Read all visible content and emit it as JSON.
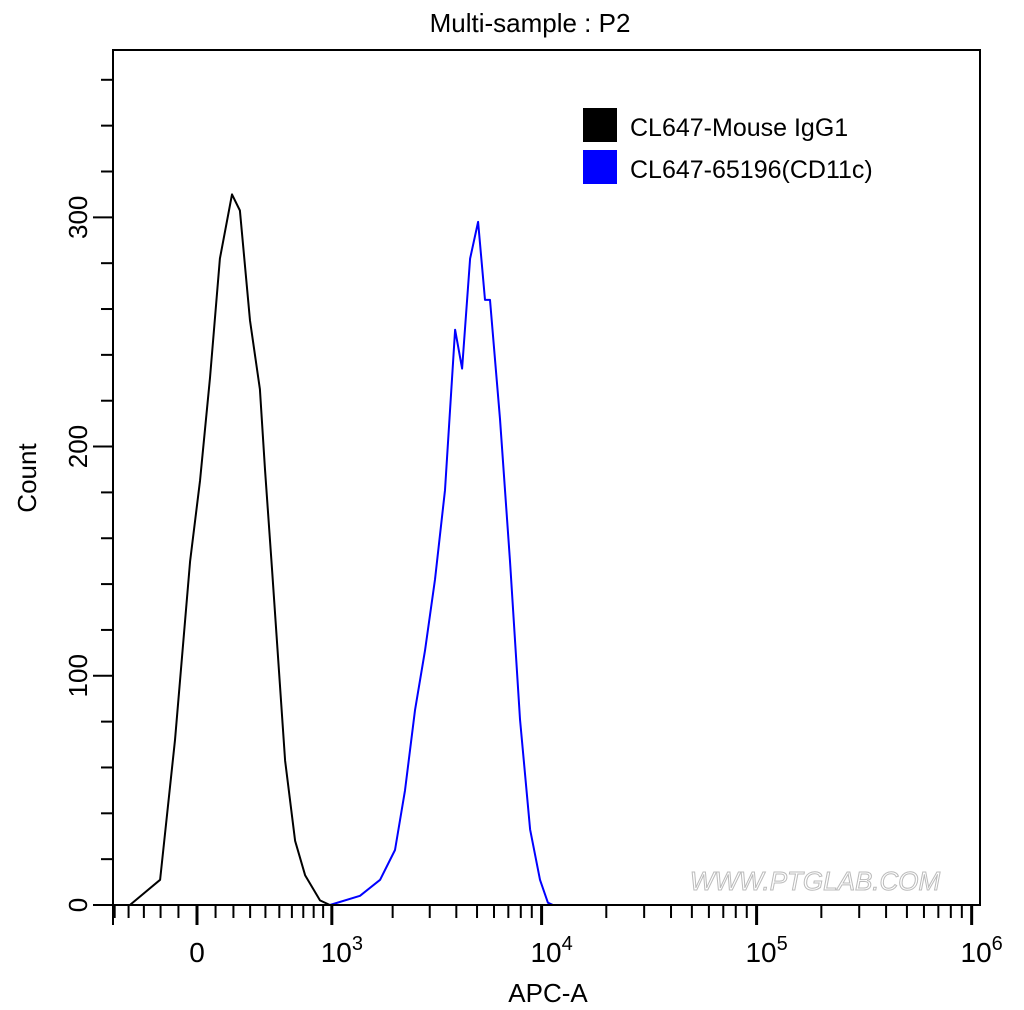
{
  "chart_data": {
    "type": "line",
    "title": "Multi-sample : P2",
    "xlabel": "APC-A",
    "ylabel": "Count",
    "x_scale": "biexponential",
    "xlim": [
      -500,
      1000000
    ],
    "ylim": [
      0,
      373
    ],
    "x_ticks": [
      {
        "value": 0,
        "base": "0",
        "exp": ""
      },
      {
        "value": 1000,
        "base": "10",
        "exp": "3"
      },
      {
        "value": 10000,
        "base": "10",
        "exp": "4"
      },
      {
        "value": 100000,
        "base": "10",
        "exp": "5"
      },
      {
        "value": 1000000,
        "base": "10",
        "exp": "6"
      }
    ],
    "y_ticks": [
      0,
      100,
      200,
      300
    ],
    "grid": false,
    "legend_position": "top-right",
    "series": [
      {
        "name": "CL647-Mouse IgG1",
        "color": "#000000",
        "x": [
          -391,
          -203,
          -119,
          -37,
          16,
          70,
          124,
          192,
          238,
          299,
          363,
          397,
          447,
          545,
          627,
          717,
          866,
          977
        ],
        "y": [
          0,
          11,
          72,
          150,
          185,
          230,
          282,
          310,
          303,
          255,
          225,
          190,
          146,
          63,
          28,
          13,
          2,
          0
        ]
      },
      {
        "name": "CL647-65196(CD11c)",
        "color": "#0000ff",
        "x": [
          977,
          1388,
          1740,
          2053,
          2290,
          2555,
          2850,
          3176,
          3541,
          3946,
          4255,
          4640,
          5055,
          5450,
          5750,
          6400,
          7125,
          7935,
          8840,
          9835,
          10700,
          11300
        ],
        "y": [
          0,
          4,
          11,
          24,
          50,
          85,
          111,
          142,
          181,
          251,
          234,
          282,
          298,
          264,
          264,
          212,
          150,
          81,
          33,
          11,
          1,
          0
        ]
      }
    ]
  },
  "watermark": "WWW.PTGLAB.COM"
}
